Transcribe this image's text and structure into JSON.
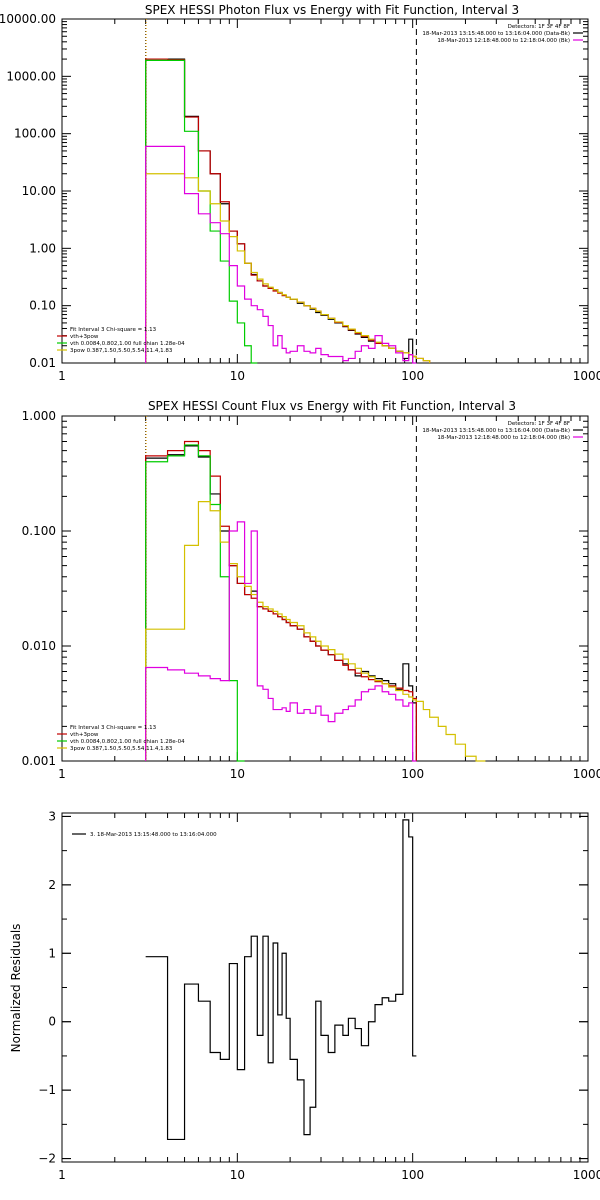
{
  "chart_data": [
    {
      "type": "line",
      "title": "SPEX HESSI Photon Flux vs Energy with Fit Function, Interval 3",
      "xscale": "log",
      "yscale": "log",
      "xlim": [
        1,
        1000
      ],
      "ylim": [
        0.01,
        10000
      ],
      "x_ticks": [
        1,
        10,
        100,
        1000
      ],
      "x_tick_labels": [
        "1",
        "10",
        "100",
        "1000"
      ],
      "y_ticks": [
        0.01,
        0.1,
        1,
        10,
        100,
        1000,
        10000
      ],
      "y_tick_labels": [
        "0.01",
        "0.10",
        "1.00",
        "10.00",
        "100.00",
        "1000.00",
        "10000.00"
      ],
      "vlines": [
        {
          "x": 3,
          "style": "dotted",
          "color": "#000000"
        },
        {
          "x": 3.02,
          "style": "dotted",
          "color": "#e8a000"
        },
        {
          "x": 105,
          "style": "dashed",
          "color": "#000000"
        }
      ],
      "legend_top_right": [
        {
          "text": "Detectors: 1F 3F 4F 8F",
          "color": "#000000",
          "swatch": false
        },
        {
          "text": "18-Mar-2013 13:15:48.000 to 13:16:04.000 (Data-Bk)",
          "color": "#000000",
          "swatch": true
        },
        {
          "text": "18-Mar-2013 12:18:48.000 to 12:18:04.000 (Bk)",
          "color": "#e000e0",
          "swatch": true
        }
      ],
      "legend_bottom_left": [
        {
          "text": "Fit Interval 3   Chi-square = 1.13",
          "color": "#000000",
          "swatch": false
        },
        {
          "text": "vth+3pow",
          "color": "#c00000",
          "swatch": true
        },
        {
          "text": "vth 0.0084,0.802,1.00  full chian 1.28e-04",
          "color": "#00cc00",
          "swatch": true
        },
        {
          "text": "3pow 0.387,1.50,5.50,5.54,11.4,1.83",
          "color": "#d4c000",
          "swatch": true
        }
      ],
      "edges": [
        3,
        4,
        5,
        6,
        7,
        8,
        9,
        10,
        11,
        12,
        13,
        14,
        15,
        16,
        17,
        18,
        19,
        20,
        22,
        24,
        26,
        28,
        30,
        33,
        36,
        40,
        43,
        47,
        51,
        56,
        61,
        67,
        73,
        80,
        88,
        95,
        100,
        105,
        115,
        125
      ],
      "series": [
        {
          "color": "#000000",
          "values": [
            2000,
            2000,
            200,
            50,
            20,
            6,
            2,
            1.2,
            0.55,
            0.35,
            0.27,
            0.22,
            0.2,
            0.19,
            0.17,
            0.15,
            0.14,
            0.13,
            0.11,
            0.1,
            0.087,
            0.076,
            0.068,
            0.058,
            0.05,
            0.043,
            0.037,
            0.032,
            0.028,
            0.024,
            0.022,
            0.02,
            0.018,
            0.016,
            0.012,
            0.026,
            0.013,
            null,
            null
          ]
        },
        {
          "color": "#c00000",
          "values": [
            2000,
            1950,
            195,
            50,
            20,
            6.5,
            2,
            1.2,
            0.55,
            0.34,
            0.27,
            0.22,
            0.2,
            0.18,
            0.165,
            0.15,
            0.14,
            0.13,
            0.115,
            0.1,
            0.09,
            0.08,
            0.07,
            0.06,
            0.051,
            0.044,
            0.038,
            0.033,
            0.029,
            0.025,
            0.022,
            0.02,
            0.018,
            0.016,
            0.015,
            0.014,
            0.013,
            0.012,
            0.011
          ]
        },
        {
          "color": "#00cc00",
          "values": [
            1900,
            1900,
            110,
            10,
            2,
            0.6,
            0.12,
            0.05,
            0.02,
            0.008,
            null,
            null,
            null,
            null,
            null,
            null,
            null,
            null,
            null,
            null,
            null,
            null,
            null,
            null,
            null,
            null,
            null,
            null,
            null,
            null,
            null,
            null,
            null,
            null,
            null,
            null,
            null,
            null,
            null
          ]
        },
        {
          "color": "#d4c000",
          "values": [
            20,
            20,
            17,
            10,
            6,
            3,
            1.6,
            0.9,
            0.55,
            0.38,
            0.29,
            0.24,
            0.21,
            0.19,
            0.17,
            0.155,
            0.14,
            0.13,
            0.115,
            0.1,
            0.09,
            0.08,
            0.07,
            0.06,
            0.052,
            0.045,
            0.039,
            0.034,
            0.03,
            0.026,
            0.023,
            0.02,
            0.018,
            0.016,
            0.015,
            0.014,
            0.013,
            0.012,
            0.011
          ]
        },
        {
          "color": "#e000e0",
          "values": [
            60,
            60,
            9,
            4,
            2.8,
            1.8,
            0.5,
            0.22,
            0.13,
            0.1,
            0.085,
            0.065,
            0.045,
            0.02,
            0.03,
            0.018,
            0.015,
            0.016,
            0.02,
            0.016,
            0.015,
            0.018,
            0.014,
            0.013,
            0.013,
            0.011,
            0.012,
            0.016,
            0.02,
            0.018,
            0.03,
            0.022,
            0.02,
            0.015,
            0.011,
            0.014,
            0.01,
            null,
            null
          ]
        }
      ]
    },
    {
      "type": "line",
      "title": "SPEX HESSI Count Flux vs Energy with Fit Function, Interval 3",
      "xscale": "log",
      "yscale": "log",
      "xlim": [
        1,
        1000
      ],
      "ylim": [
        0.001,
        1
      ],
      "x_ticks": [
        1,
        10,
        100,
        1000
      ],
      "x_tick_labels": [
        "1",
        "10",
        "100",
        "1000"
      ],
      "y_ticks": [
        0.001,
        0.01,
        0.1,
        1
      ],
      "y_tick_labels": [
        "0.001",
        "0.010",
        "0.100",
        "1.000"
      ],
      "vlines": [
        {
          "x": 3,
          "style": "dotted",
          "color": "#000000"
        },
        {
          "x": 3.02,
          "style": "dotted",
          "color": "#e8a000"
        },
        {
          "x": 105,
          "style": "dashed",
          "color": "#000000"
        }
      ],
      "legend_top_right": [
        {
          "text": "Detectors: 1F 3F 4F 8F",
          "color": "#000000",
          "swatch": false
        },
        {
          "text": "18-Mar-2013 13:15:48.000 to 13:16:04.000 (Data-Bk)",
          "color": "#000000",
          "swatch": true
        },
        {
          "text": "18-Mar-2013 12:18:48.000 to 12:18:04.000 (Bk)",
          "color": "#e000e0",
          "swatch": true
        }
      ],
      "legend_bottom_left": [
        {
          "text": "Fit Interval 3   Chi-square = 1.13",
          "color": "#000000",
          "swatch": false
        },
        {
          "text": "vth+3pow",
          "color": "#c00000",
          "swatch": true
        },
        {
          "text": "vth 0.0084,0.802,1.00  full chian 1.28e-04",
          "color": "#00cc00",
          "swatch": true
        },
        {
          "text": "3pow 0.387,1.50,5.50,5.54,11.4,1.83",
          "color": "#d4c000",
          "swatch": true
        }
      ],
      "edges": [
        3,
        4,
        5,
        6,
        7,
        8,
        9,
        10,
        11,
        12,
        13,
        14,
        15,
        16,
        17,
        18,
        19,
        20,
        22,
        24,
        26,
        28,
        30,
        33,
        36,
        40,
        43,
        47,
        51,
        56,
        61,
        67,
        73,
        80,
        88,
        95,
        100,
        105,
        115,
        125,
        140,
        155,
        175,
        200,
        230,
        260
      ],
      "series": [
        {
          "color": "#000000",
          "values": [
            0.43,
            0.46,
            0.55,
            0.44,
            0.21,
            0.1,
            0.05,
            0.035,
            0.028,
            0.03,
            0.022,
            0.021,
            0.02,
            0.019,
            0.018,
            0.017,
            0.016,
            0.015,
            0.014,
            0.012,
            0.011,
            0.01,
            0.0092,
            0.0084,
            0.0075,
            0.007,
            0.0062,
            0.0055,
            0.006,
            0.0055,
            0.0052,
            0.005,
            0.0047,
            0.0042,
            0.007,
            0.0045,
            0.0032,
            null,
            null,
            null,
            null,
            null,
            null,
            null,
            null
          ]
        },
        {
          "color": "#c00000",
          "values": [
            0.45,
            0.5,
            0.6,
            0.5,
            0.3,
            0.11,
            0.05,
            0.035,
            0.028,
            0.026,
            0.022,
            0.021,
            0.02,
            0.019,
            0.018,
            0.017,
            0.016,
            0.015,
            0.014,
            0.012,
            0.011,
            0.01,
            0.0092,
            0.0084,
            0.0075,
            0.0068,
            0.0062,
            0.0058,
            0.0054,
            0.0051,
            0.0049,
            0.0047,
            0.0045,
            0.0043,
            0.0041,
            0.004,
            0.0035,
            null,
            null,
            null,
            null,
            null,
            null,
            null,
            null
          ]
        },
        {
          "color": "#00cc00",
          "values": [
            0.4,
            0.45,
            0.56,
            0.45,
            0.17,
            0.04,
            0.005,
            0.0009,
            null,
            null,
            null,
            null,
            null,
            null,
            null,
            null,
            null,
            null,
            null,
            null,
            null,
            null,
            null,
            null,
            null,
            null,
            null,
            null,
            null,
            null,
            null,
            null,
            null,
            null,
            null,
            null,
            null,
            null,
            null,
            null,
            null,
            null,
            null,
            null,
            null
          ]
        },
        {
          "color": "#d4c000",
          "values": [
            0.014,
            0.014,
            0.075,
            0.18,
            0.15,
            0.08,
            0.052,
            0.04,
            0.033,
            0.028,
            0.024,
            0.022,
            0.021,
            0.02,
            0.019,
            0.018,
            0.017,
            0.016,
            0.015,
            0.013,
            0.012,
            0.011,
            0.01,
            0.0093,
            0.0085,
            0.0077,
            0.007,
            0.0064,
            0.0058,
            0.0054,
            0.005,
            0.0047,
            0.0044,
            0.0041,
            0.0038,
            0.0036,
            0.0034,
            0.0033,
            0.0028,
            0.0024,
            0.002,
            0.0017,
            0.0014,
            0.0011,
            0.0008
          ]
        },
        {
          "color": "#e000e0",
          "values": [
            0.0065,
            0.0062,
            0.0058,
            0.0055,
            0.0052,
            0.005,
            0.1,
            0.12,
            0.035,
            0.1,
            0.0045,
            0.0042,
            0.0035,
            0.0028,
            0.0028,
            0.0029,
            0.0027,
            0.0032,
            0.0026,
            0.0028,
            0.0026,
            0.003,
            0.0025,
            0.0022,
            0.0026,
            0.0028,
            0.003,
            0.0034,
            0.004,
            0.0042,
            0.0045,
            0.004,
            0.0038,
            0.0034,
            0.003,
            0.0032,
            0.0005,
            null,
            null,
            null,
            null,
            null,
            null,
            null,
            null
          ]
        }
      ]
    },
    {
      "type": "line",
      "title": "",
      "ylabel": "Normalized Residuals",
      "xscale": "log",
      "yscale": "linear",
      "xlim": [
        1,
        1000
      ],
      "ylim": [
        -2.05,
        3.05
      ],
      "x_ticks": [
        1,
        10,
        100,
        1000
      ],
      "x_tick_labels": [
        "1",
        "10",
        "100",
        "1000"
      ],
      "y_ticks": [
        -2,
        -1,
        0,
        1,
        2,
        3
      ],
      "y_tick_labels": [
        "−2",
        "−1",
        "0",
        "1",
        "2",
        "3"
      ],
      "legend_top_left": [
        {
          "text": "3. 18-Mar-2013 13:15:48.000 to 13:16:04.000",
          "color": "#000000",
          "swatch": true
        }
      ],
      "edges": [
        3,
        4,
        5,
        6,
        7,
        8,
        9,
        10,
        11,
        12,
        13,
        14,
        15,
        16,
        17,
        18,
        19,
        20,
        22,
        24,
        26,
        28,
        30,
        33,
        36,
        40,
        43,
        47,
        51,
        56,
        61,
        67,
        73,
        80,
        88,
        95,
        100,
        105
      ],
      "series": [
        {
          "color": "#000000",
          "values": [
            0.95,
            -1.72,
            0.55,
            0.3,
            -0.45,
            -0.55,
            0.85,
            -0.7,
            0.95,
            1.25,
            -0.2,
            1.25,
            -0.6,
            1.15,
            0.1,
            1,
            0.05,
            -0.55,
            -0.85,
            -1.65,
            -1.25,
            0.3,
            -0.2,
            -0.45,
            -0.05,
            -0.2,
            0.05,
            -0.1,
            -0.35,
            0,
            0.25,
            0.35,
            0.3,
            0.4,
            2.95,
            2.7,
            -0.5
          ]
        }
      ]
    }
  ]
}
